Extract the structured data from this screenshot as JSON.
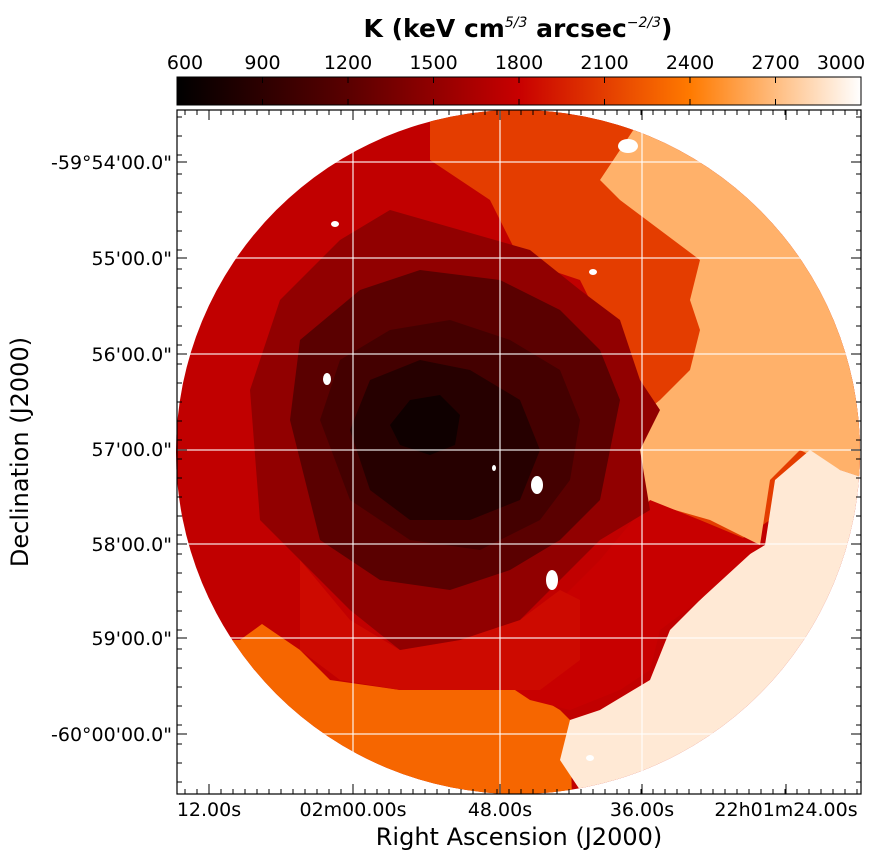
{
  "chart_data": {
    "type": "heatmap",
    "title_prefix": "K (keV cm",
    "title_exp1": "5/3",
    "title_mid": " arcsec",
    "title_exp2": "−2/3",
    "title_suffix": ")",
    "colorbar": {
      "min": 600,
      "max": 3000,
      "ticks": [
        600,
        900,
        1200,
        1500,
        1800,
        2100,
        2400,
        2700,
        3000
      ],
      "tick_labels": [
        "600",
        "900",
        "1200",
        "1500",
        "1800",
        "2100",
        "2400",
        "2700",
        "3000"
      ],
      "stops": [
        {
          "value": 600,
          "color": "#000000"
        },
        {
          "value": 1200,
          "color": "#5a0000"
        },
        {
          "value": 1800,
          "color": "#c80000"
        },
        {
          "value": 2400,
          "color": "#ff7a00"
        },
        {
          "value": 3000,
          "color": "#ffffff"
        }
      ]
    },
    "xlabel": "Right Ascension (J2000)",
    "ylabel": "Declination (J2000)",
    "xtick_labels": [
      "12.00s",
      "02m00.00s",
      "48.00s",
      "36.00s",
      "22h01m24.00s"
    ],
    "ytick_labels": [
      "-59°54'00.0\"",
      "55'00.0\"",
      "56'00.0\"",
      "57'00.0\"",
      "58'00.0\"",
      "59'00.0\"",
      "-60°00'00.0\""
    ],
    "regions": [
      {
        "name": "outer-west-ring",
        "K": 1760
      },
      {
        "name": "outer-south-ring",
        "K": 2300
      },
      {
        "name": "east-northeast-band",
        "K": 2100
      },
      {
        "name": "east-outer-light",
        "K": 2650
      },
      {
        "name": "southeast-outer-lightest",
        "K": 2900
      },
      {
        "name": "southeast-mid",
        "K": 1800
      },
      {
        "name": "south-mid",
        "K": 1850
      },
      {
        "name": "inner-ring-1",
        "K": 1500
      },
      {
        "name": "inner-ring-2",
        "K": 1200
      },
      {
        "name": "inner-ring-3",
        "K": 1050
      },
      {
        "name": "core",
        "K": 850
      },
      {
        "name": "core-center",
        "K": 700
      }
    ]
  }
}
